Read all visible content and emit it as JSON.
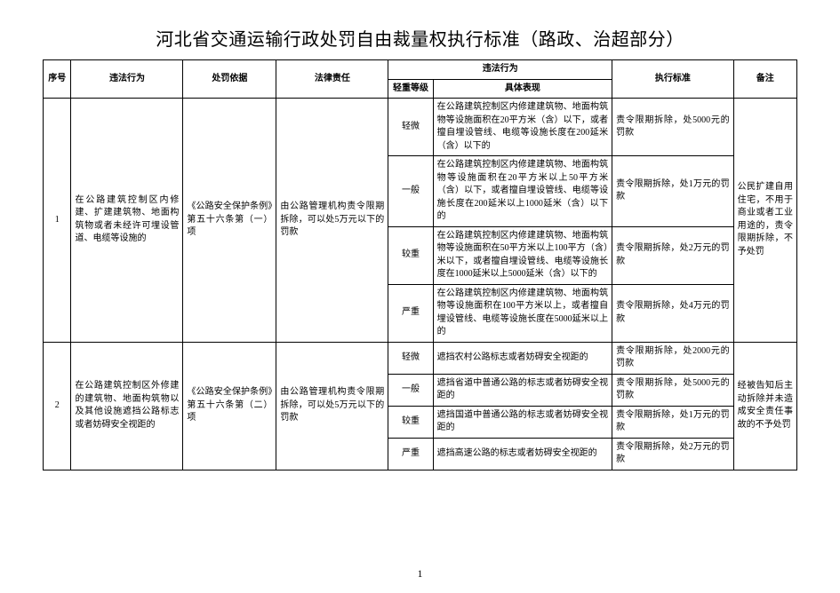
{
  "title": "河北省交通运输行政处罚自由裁量权执行标准（路政、治超部分）",
  "pageNumber": "1",
  "headers": {
    "seq": "序号",
    "act": "违法行为",
    "basis": "处罚依据",
    "law": "法律责任",
    "violGroup": "违法行为",
    "level": "轻重等级",
    "desc": "具体表现",
    "std": "执行标准",
    "note": "备注"
  },
  "rows": [
    {
      "seq": "1",
      "act": "在公路建筑控制区内修建、扩建建筑物、地面构筑物或者未经许可埋设管道、电缆等设施的",
      "basis": "《公路安全保护条例》第五十六条第（一）项",
      "law": "由公路管理机构责令限期拆除，可以处5万元以下的罚款",
      "note": "公民扩建自用住宅，不用于商业或者工业用途的，责令限期拆除，不予处罚",
      "levels": [
        {
          "lvl": "轻微",
          "desc": "在公路建筑控制区内修建建筑物、地面构筑物等设施面积在20平方米（含）以下，或者擅自埋设管线、电缆等设施长度在200延米（含）以下的",
          "std": "责令限期拆除，处5000元的罚款"
        },
        {
          "lvl": "一般",
          "desc": "在公路建筑控制区内修建建筑物、地面构筑物等设施面积在20平方米以上50平方米（含）以下，或者擅自埋设管线、电缆等设施长度在200延米以上1000延米（含）以下的",
          "std": "责令限期拆除，处1万元的罚款"
        },
        {
          "lvl": "较重",
          "desc": "在公路建筑控制区内修建建筑物、地面构筑物等设施面积在50平方米以上100平方（含）米以下，或者擅自埋设管线、电缆等设施长度在1000延米以上5000延米（含）以下的",
          "std": "责令限期拆除，处2万元的罚款"
        },
        {
          "lvl": "严重",
          "desc": "在公路建筑控制区内修建建筑物、地面构筑物等设施面积在100平方米以上，或者擅自埋设管线、电缆等设施长度在5000延米以上的",
          "std": "责令限期拆除，处4万元的罚款"
        }
      ]
    },
    {
      "seq": "2",
      "act": "在公路建筑控制区外修建的建筑物、地面构筑物以及其他设施遮挡公路标志或者妨碍安全视距的",
      "basis": "《公路安全保护条例》第五十六条第（二）项",
      "law": "由公路管理机构责令限期拆除，可以处5万元以下的罚款",
      "note": "经被告知后主动拆除并未造成安全责任事故的不予处罚",
      "levels": [
        {
          "lvl": "轻微",
          "desc": "遮挡农村公路标志或者妨碍安全视距的",
          "std": "责令限期拆除，处2000元的罚款"
        },
        {
          "lvl": "一般",
          "desc": "遮挡省道中普通公路的标志或者妨碍安全视距的",
          "std": "责令限期拆除，处5000元的罚款"
        },
        {
          "lvl": "较重",
          "desc": "遮挡国道中普通公路的标志或者妨碍安全视距的",
          "std": "责令限期拆除，处1万元的罚款"
        },
        {
          "lvl": "严重",
          "desc": "遮挡高速公路的标志或者妨碍安全视距的",
          "std": "责令限期拆除，处2万元的罚款"
        }
      ]
    }
  ]
}
